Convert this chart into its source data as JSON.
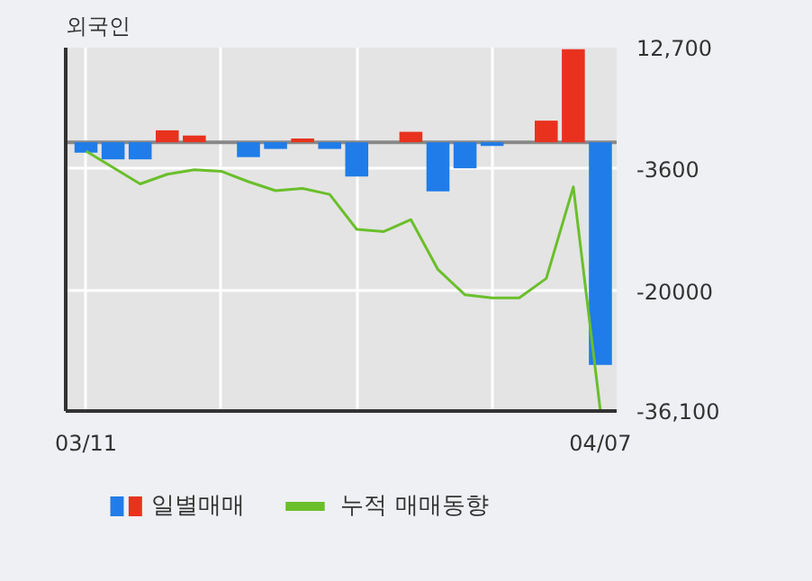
{
  "chart_data": {
    "type": "bar",
    "title": "외국인",
    "categories": [
      "03/11",
      null,
      null,
      null,
      null,
      null,
      null,
      null,
      null,
      null,
      null,
      null,
      null,
      null,
      null,
      null,
      null,
      null,
      null,
      "04/07"
    ],
    "series": [
      {
        "name": "일별매매",
        "colors": [
          "#1f7ce8",
          "#1f7ce8",
          "#1f7ce8",
          "#e8321e",
          "#e8321e",
          "#e8321e",
          "#1f7ce8",
          "#1f7ce8",
          "#e8321e",
          "#1f7ce8",
          "#1f7ce8",
          "#e8321e",
          "#e8321e",
          "#1f7ce8",
          "#1f7ce8",
          "#1f7ce8",
          "#e8321e",
          "#e8321e",
          "#e8321e",
          "#1f7ce8"
        ],
        "values": [
          -1400,
          -2300,
          -2300,
          1600,
          900,
          0,
          -2000,
          -900,
          500,
          -900,
          -4600,
          0,
          1400,
          -6600,
          -3500,
          -500,
          0,
          2900,
          12500,
          -29900
        ]
      },
      {
        "name": "누적 매매동향",
        "type": "line",
        "color": "#6abf2a",
        "values": [
          -1200,
          -3400,
          -5600,
          -4300,
          -3700,
          -3900,
          -5300,
          -6500,
          -6200,
          -7000,
          -11700,
          -12000,
          -10400,
          -17100,
          -20500,
          -20900,
          -20900,
          -18300,
          -6000,
          -36100
        ]
      }
    ],
    "ylim": [
      -36100,
      12700
    ],
    "yticks": [
      {
        "value": 12700,
        "label": "12,700"
      },
      -3600,
      -20000,
      {
        "value": -36100,
        "label": "-36,100"
      }
    ],
    "grid": true,
    "legend": "bottom"
  }
}
